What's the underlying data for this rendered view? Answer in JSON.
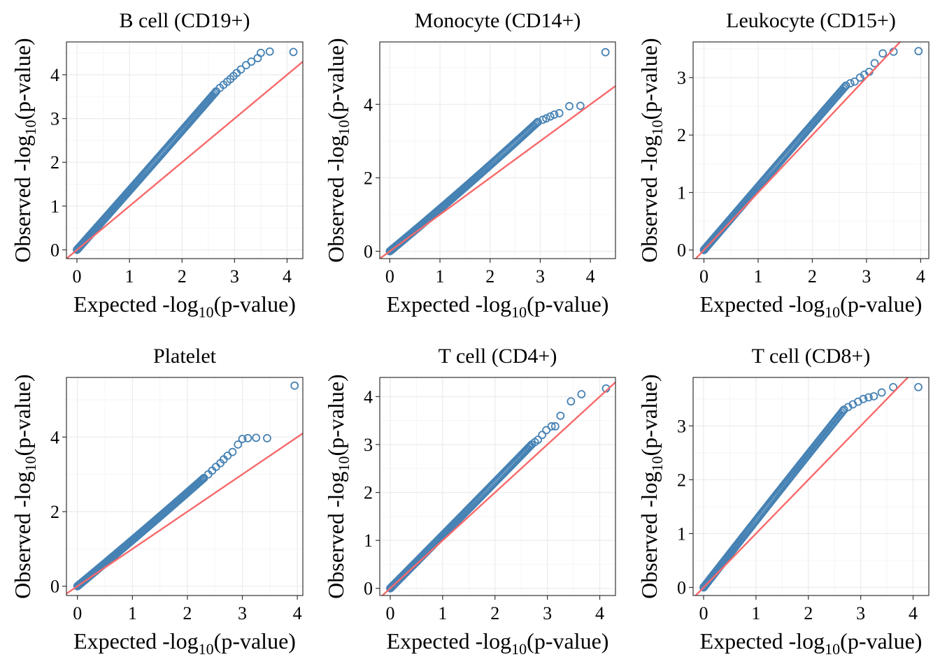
{
  "colors": {
    "points": "#4682B4",
    "reference_line": "#F8696B",
    "panel_border": "#333333",
    "grid_major": "#EBEBEB",
    "grid_minor": "#F5F5F5"
  },
  "axis_labels": {
    "x": {
      "pre": "Expected -log",
      "sub": "10",
      "post": "(p-value)"
    },
    "y": {
      "pre": "Observed -log",
      "sub": "10",
      "post": "(p-value)"
    }
  },
  "chart_data": [
    {
      "type": "scatter",
      "title": "B cell (CD19+)",
      "xlim": [
        -0.2,
        4.3
      ],
      "ylim": [
        -0.2,
        4.75
      ],
      "xticks": [
        0,
        1,
        2,
        3,
        4
      ],
      "yticks": [
        0,
        1,
        2,
        3,
        4
      ],
      "slope": 1.35,
      "grid": true,
      "reference_line": "y = x",
      "tail": [
        [
          2.65,
          3.62
        ],
        [
          2.72,
          3.7
        ],
        [
          2.79,
          3.77
        ],
        [
          2.86,
          3.84
        ],
        [
          2.92,
          3.9
        ],
        [
          2.98,
          3.97
        ],
        [
          3.04,
          4.04
        ],
        [
          3.12,
          4.12
        ],
        [
          3.22,
          4.22
        ],
        [
          3.32,
          4.3
        ],
        [
          3.44,
          4.38
        ],
        [
          3.5,
          4.5
        ],
        [
          3.67,
          4.53
        ],
        [
          4.12,
          4.52
        ]
      ]
    },
    {
      "type": "scatter",
      "title": "Monocyte (CD14+)",
      "xlim": [
        -0.2,
        4.5
      ],
      "ylim": [
        -0.2,
        5.7
      ],
      "xticks": [
        0,
        1,
        2,
        3,
        4
      ],
      "yticks": [
        0,
        2,
        4
      ],
      "slope": 1.13,
      "grid": true,
      "reference_line": "y = x",
      "tail": [
        [
          2.95,
          3.52
        ],
        [
          3.05,
          3.58
        ],
        [
          3.12,
          3.62
        ],
        [
          3.2,
          3.67
        ],
        [
          3.28,
          3.72
        ],
        [
          3.38,
          3.76
        ],
        [
          3.58,
          3.95
        ],
        [
          3.8,
          3.96
        ],
        [
          4.3,
          5.42
        ]
      ]
    },
    {
      "type": "scatter",
      "title": "Leukocyte (CD15+)",
      "xlim": [
        -0.2,
        4.15
      ],
      "ylim": [
        -0.15,
        3.62
      ],
      "xticks": [
        0,
        1,
        2,
        3,
        4
      ],
      "yticks": [
        0,
        1,
        2,
        3
      ],
      "slope": 1.1,
      "grid": true,
      "reference_line": "y = x",
      "tail": [
        [
          2.62,
          2.86
        ],
        [
          2.7,
          2.9
        ],
        [
          2.78,
          2.93
        ],
        [
          2.88,
          3.0
        ],
        [
          2.96,
          3.05
        ],
        [
          3.05,
          3.1
        ],
        [
          3.15,
          3.25
        ],
        [
          3.3,
          3.42
        ],
        [
          3.5,
          3.45
        ],
        [
          3.96,
          3.46
        ]
      ]
    },
    {
      "type": "scatter",
      "title": "Platelet",
      "xlim": [
        -0.2,
        4.1
      ],
      "ylim": [
        -0.25,
        5.6
      ],
      "xticks": [
        0,
        1,
        2,
        3,
        4
      ],
      "yticks": [
        0,
        2,
        4
      ],
      "slope": 1.22,
      "grid": true,
      "reference_line": "y = x",
      "tail": [
        [
          2.3,
          2.9
        ],
        [
          2.38,
          3.0
        ],
        [
          2.45,
          3.1
        ],
        [
          2.52,
          3.2
        ],
        [
          2.6,
          3.3
        ],
        [
          2.66,
          3.4
        ],
        [
          2.73,
          3.5
        ],
        [
          2.82,
          3.6
        ],
        [
          2.92,
          3.8
        ],
        [
          3.0,
          3.95
        ],
        [
          3.1,
          3.97
        ],
        [
          3.25,
          3.98
        ],
        [
          3.45,
          3.97
        ],
        [
          3.95,
          5.38
        ]
      ]
    },
    {
      "type": "scatter",
      "title": "T cell (CD4+)",
      "xlim": [
        -0.2,
        4.3
      ],
      "ylim": [
        -0.15,
        4.4
      ],
      "xticks": [
        0,
        1,
        2,
        3,
        4
      ],
      "yticks": [
        0,
        1,
        2,
        3,
        4
      ],
      "slope": 1.1,
      "grid": true,
      "reference_line": "y = x",
      "tail": [
        [
          2.7,
          3.0
        ],
        [
          2.76,
          3.05
        ],
        [
          2.82,
          3.1
        ],
        [
          2.9,
          3.2
        ],
        [
          2.98,
          3.3
        ],
        [
          3.08,
          3.38
        ],
        [
          3.15,
          3.38
        ],
        [
          3.25,
          3.6
        ],
        [
          3.45,
          3.9
        ],
        [
          3.65,
          4.05
        ],
        [
          4.12,
          4.17
        ]
      ]
    },
    {
      "type": "scatter",
      "title": "T cell (CD8+)",
      "xlim": [
        -0.2,
        4.3
      ],
      "ylim": [
        -0.15,
        3.9
      ],
      "xticks": [
        0,
        1,
        2,
        3,
        4
      ],
      "yticks": [
        0,
        1,
        2,
        3
      ],
      "slope": 1.25,
      "grid": true,
      "reference_line": "y = x",
      "tail": [
        [
          2.68,
          3.3
        ],
        [
          2.76,
          3.35
        ],
        [
          2.85,
          3.4
        ],
        [
          2.95,
          3.45
        ],
        [
          3.05,
          3.5
        ],
        [
          3.15,
          3.53
        ],
        [
          3.25,
          3.55
        ],
        [
          3.4,
          3.62
        ],
        [
          3.62,
          3.72
        ],
        [
          4.1,
          3.72
        ]
      ]
    }
  ]
}
